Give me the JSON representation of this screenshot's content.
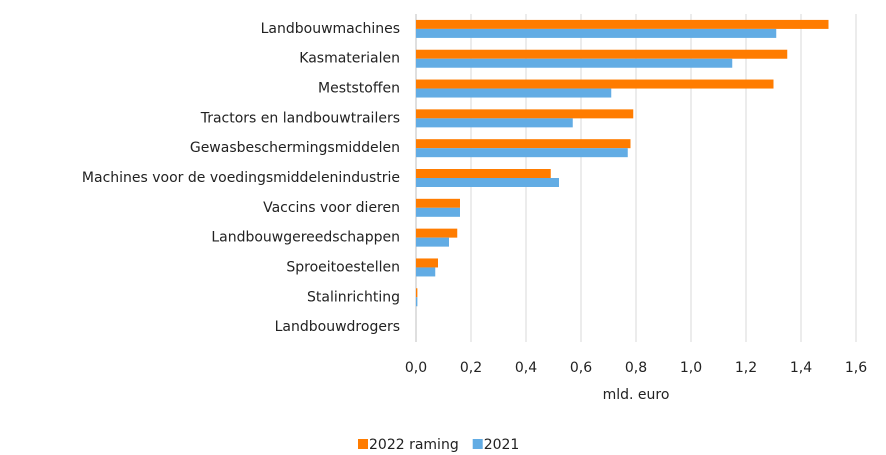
{
  "chart_data": {
    "type": "bar",
    "orientation": "horizontal",
    "categories": [
      "Landbouwmachines",
      "Kasmaterialen",
      "Meststoffen",
      "Tractors en landbouwtrailers",
      "Gewasbeschermingsmiddelen",
      "Machines voor de voedingsmiddelenindustrie",
      "Vaccins voor dieren",
      "Landbouwgereedschappen",
      "Sproeitoestellen",
      "Stalinrichting",
      "Landbouwdrogers"
    ],
    "series": [
      {
        "name": "2022 raming",
        "color": "#ff7c00",
        "values": [
          1.5,
          1.35,
          1.3,
          0.79,
          0.78,
          0.49,
          0.16,
          0.15,
          0.08,
          0.005,
          0
        ]
      },
      {
        "name": "2021",
        "color": "#62ace4",
        "values": [
          1.31,
          1.15,
          0.71,
          0.57,
          0.77,
          0.52,
          0.16,
          0.12,
          0.07,
          0.005,
          0
        ]
      }
    ],
    "xlabel": "mld. euro",
    "xlim": [
      0,
      1.6
    ],
    "xticks": [
      {
        "value": 0,
        "label": "0,0"
      },
      {
        "value": 0.2,
        "label": "0,2"
      },
      {
        "value": 0.4,
        "label": "0,4"
      },
      {
        "value": 0.6,
        "label": "0,6"
      },
      {
        "value": 0.8,
        "label": "0,8"
      },
      {
        "value": 1.0,
        "label": "1,0"
      },
      {
        "value": 1.2,
        "label": "1,2"
      },
      {
        "value": 1.4,
        "label": "1,4"
      },
      {
        "value": 1.6,
        "label": "1,6"
      }
    ],
    "grid": true,
    "legend": "bottom"
  }
}
